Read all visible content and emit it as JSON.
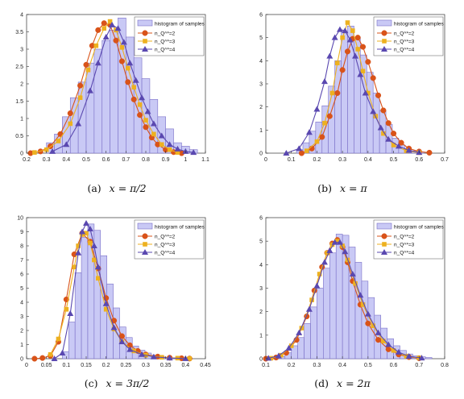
{
  "figure": {
    "legend": {
      "hist_label": "histogram of samples",
      "entries": [
        "n_Q^*=2",
        "n_Q^*=3",
        "n_Q^*=4"
      ]
    },
    "colors": {
      "bar_fill": "#c9c9f5",
      "bar_edge": "#7a6fc7",
      "s2": "#d95319",
      "s3": "#edb120",
      "s4": "#5a48b0",
      "axis": "#333333"
    }
  },
  "captions": [
    {
      "label": "(a)",
      "expr": "x = π/2"
    },
    {
      "label": "(b)",
      "expr": "x = π"
    },
    {
      "label": "(c)",
      "expr": "x = 3π/2"
    },
    {
      "label": "(d)",
      "expr": "x = 2π"
    }
  ],
  "chart_data": [
    {
      "type": "bar",
      "title": "",
      "xlim": [
        0.2,
        1.1
      ],
      "ylim": [
        0,
        4
      ],
      "xticks": [
        0.2,
        0.3,
        0.4,
        0.5,
        0.6,
        0.7,
        0.8,
        0.9,
        1,
        1.1
      ],
      "yticks": [
        0,
        0.5,
        1,
        1.5,
        2,
        2.5,
        3,
        3.5,
        4
      ],
      "hist": {
        "name": "histogram of samples",
        "start": 0.3,
        "width": 0.04,
        "values": [
          0.3,
          0.55,
          1.05,
          1.6,
          2.05,
          2.6,
          3.0,
          3.25,
          3.55,
          3.9,
          3.35,
          2.75,
          2.15,
          1.55,
          1.05,
          0.7,
          0.3,
          0.2,
          0.1
        ]
      },
      "series": [
        {
          "name": "n_Q^*=2",
          "marker": "circle",
          "x": [
            0.22,
            0.27,
            0.32,
            0.37,
            0.42,
            0.47,
            0.5,
            0.53,
            0.56,
            0.59,
            0.62,
            0.65,
            0.68,
            0.71,
            0.74,
            0.77,
            0.8,
            0.83,
            0.86,
            0.9,
            0.94,
            0.98
          ],
          "y": [
            0,
            0.05,
            0.2,
            0.55,
            1.15,
            1.95,
            2.55,
            3.1,
            3.55,
            3.75,
            3.7,
            3.25,
            2.65,
            2.05,
            1.55,
            1.1,
            0.75,
            0.45,
            0.25,
            0.1,
            0.03,
            0
          ]
        },
        {
          "name": "n_Q^*=3",
          "marker": "square",
          "x": [
            0.24,
            0.3,
            0.36,
            0.42,
            0.47,
            0.51,
            0.55,
            0.59,
            0.62,
            0.65,
            0.68,
            0.71,
            0.74,
            0.77,
            0.8,
            0.84,
            0.88,
            0.92,
            0.96
          ],
          "y": [
            0.02,
            0.1,
            0.35,
            0.85,
            1.6,
            2.4,
            3.1,
            3.6,
            3.8,
            3.55,
            3.05,
            2.45,
            1.9,
            1.4,
            0.95,
            0.55,
            0.25,
            0.1,
            0.02
          ]
        },
        {
          "name": "n_Q^*=4",
          "marker": "triangle",
          "x": [
            0.33,
            0.4,
            0.46,
            0.52,
            0.56,
            0.6,
            0.63,
            0.66,
            0.69,
            0.72,
            0.75,
            0.78,
            0.81,
            0.84,
            0.88,
            0.92,
            0.96,
            1.0,
            1.04
          ],
          "y": [
            0.05,
            0.25,
            0.85,
            1.8,
            2.6,
            3.35,
            3.7,
            3.6,
            3.2,
            2.6,
            2.1,
            1.6,
            1.2,
            0.85,
            0.5,
            0.25,
            0.12,
            0.05,
            0.02
          ]
        }
      ]
    },
    {
      "type": "bar",
      "title": "",
      "xlim": [
        0,
        0.7
      ],
      "ylim": [
        0,
        6
      ],
      "xticks": [
        0,
        0.1,
        0.2,
        0.3,
        0.4,
        0.5,
        0.6,
        0.7
      ],
      "yticks": [
        0,
        1,
        2,
        3,
        4,
        5,
        6
      ],
      "hist": {
        "name": "histogram of samples",
        "start": 0.12,
        "width": 0.025,
        "values": [
          0.15,
          0.45,
          0.95,
          1.35,
          2.05,
          2.9,
          4.0,
          5.25,
          5.5,
          5.0,
          4.25,
          3.5,
          2.6,
          1.85,
          1.25,
          0.65,
          0.35,
          0.2,
          0.1,
          0.05
        ]
      },
      "series": [
        {
          "name": "n_Q^*=2",
          "marker": "circle",
          "x": [
            0.14,
            0.18,
            0.22,
            0.25,
            0.28,
            0.3,
            0.32,
            0.34,
            0.36,
            0.38,
            0.4,
            0.42,
            0.44,
            0.46,
            0.48,
            0.5,
            0.53,
            0.56,
            0.6,
            0.64
          ],
          "y": [
            0,
            0.2,
            0.7,
            1.6,
            2.6,
            3.6,
            4.4,
            4.95,
            5.0,
            4.6,
            3.95,
            3.25,
            2.5,
            1.85,
            1.3,
            0.85,
            0.45,
            0.2,
            0.07,
            0.02
          ]
        },
        {
          "name": "n_Q^*=3",
          "marker": "square",
          "x": [
            0.16,
            0.2,
            0.23,
            0.26,
            0.28,
            0.3,
            0.32,
            0.34,
            0.36,
            0.38,
            0.4,
            0.43,
            0.46,
            0.5,
            0.55,
            0.6
          ],
          "y": [
            0.1,
            0.5,
            1.3,
            2.6,
            3.9,
            5.0,
            5.65,
            5.3,
            4.5,
            3.55,
            2.6,
            1.6,
            0.85,
            0.35,
            0.1,
            0.02
          ]
        },
        {
          "name": "n_Q^*=4",
          "marker": "triangle",
          "x": [
            0.08,
            0.13,
            0.17,
            0.2,
            0.23,
            0.25,
            0.27,
            0.29,
            0.31,
            0.33,
            0.35,
            0.37,
            0.39,
            0.42,
            0.45,
            0.48,
            0.52,
            0.56,
            0.6
          ],
          "y": [
            0,
            0.2,
            0.9,
            1.9,
            3.1,
            4.2,
            5.0,
            5.35,
            5.3,
            4.9,
            4.2,
            3.4,
            2.6,
            1.8,
            1.1,
            0.6,
            0.3,
            0.12,
            0.03
          ]
        }
      ]
    },
    {
      "type": "bar",
      "title": "",
      "xlim": [
        0,
        0.45
      ],
      "ylim": [
        0,
        10
      ],
      "xticks": [
        0,
        0.05,
        0.1,
        0.15,
        0.2,
        0.25,
        0.3,
        0.35,
        0.4,
        0.45
      ],
      "yticks": [
        0,
        1,
        2,
        3,
        4,
        5,
        6,
        7,
        8,
        9,
        10
      ],
      "hist": {
        "name": "histogram of samples",
        "start": 0.09,
        "width": 0.016,
        "values": [
          0.5,
          2.6,
          6.1,
          8.6,
          9.55,
          9.1,
          7.3,
          5.3,
          3.6,
          2.25,
          1.5,
          0.9,
          0.6,
          0.4,
          0.25,
          0.18,
          0.1,
          0.06,
          0.04
        ]
      },
      "series": [
        {
          "name": "n_Q^*=2",
          "marker": "circle",
          "x": [
            0.02,
            0.04,
            0.06,
            0.08,
            0.1,
            0.12,
            0.14,
            0.16,
            0.18,
            0.2,
            0.22,
            0.24,
            0.26,
            0.28,
            0.3,
            0.33,
            0.36,
            0.39,
            0.41
          ],
          "y": [
            0,
            0.05,
            0.2,
            1.2,
            4.2,
            7.4,
            8.9,
            8.3,
            6.4,
            4.3,
            2.7,
            1.6,
            0.95,
            0.55,
            0.3,
            0.15,
            0.07,
            0.03,
            0.01
          ]
        },
        {
          "name": "n_Q^*=3",
          "marker": "square",
          "x": [
            0.06,
            0.08,
            0.1,
            0.12,
            0.13,
            0.14,
            0.15,
            0.16,
            0.17,
            0.18,
            0.2,
            0.22,
            0.24,
            0.27,
            0.3,
            0.34,
            0.38,
            0.41
          ],
          "y": [
            0.3,
            1.4,
            3.5,
            6.5,
            8.0,
            8.8,
            8.9,
            8.2,
            7.0,
            5.7,
            3.5,
            2.1,
            1.2,
            0.55,
            0.25,
            0.1,
            0.04,
            0.01
          ]
        },
        {
          "name": "n_Q^*=4",
          "marker": "triangle",
          "x": [
            0.07,
            0.09,
            0.11,
            0.13,
            0.14,
            0.15,
            0.16,
            0.17,
            0.18,
            0.2,
            0.22,
            0.24,
            0.26,
            0.29,
            0.32,
            0.36,
            0.4
          ],
          "y": [
            0,
            0.4,
            3.2,
            7.5,
            9.0,
            9.6,
            9.2,
            8.0,
            6.5,
            3.9,
            2.2,
            1.2,
            0.65,
            0.3,
            0.13,
            0.05,
            0.01
          ]
        }
      ]
    },
    {
      "type": "bar",
      "title": "",
      "xlim": [
        0.1,
        0.8
      ],
      "ylim": [
        0,
        6
      ],
      "xticks": [
        0.1,
        0.2,
        0.3,
        0.4,
        0.5,
        0.6,
        0.7,
        0.8
      ],
      "yticks": [
        0,
        1,
        2,
        3,
        4,
        5,
        6
      ],
      "hist": {
        "name": "histogram of samples",
        "start": 0.15,
        "width": 0.025,
        "values": [
          0.1,
          0.25,
          0.55,
          0.9,
          1.5,
          2.2,
          3.0,
          3.85,
          4.5,
          5.3,
          5.25,
          4.75,
          4.1,
          3.3,
          2.6,
          1.85,
          1.3,
          0.85,
          0.55,
          0.35,
          0.2,
          0.12,
          0.08,
          0.05
        ]
      },
      "series": [
        {
          "name": "n_Q^*=2",
          "marker": "circle",
          "x": [
            0.1,
            0.14,
            0.18,
            0.22,
            0.26,
            0.29,
            0.32,
            0.34,
            0.36,
            0.38,
            0.4,
            0.42,
            0.44,
            0.47,
            0.5,
            0.54,
            0.58,
            0.62,
            0.66,
            0.7
          ],
          "y": [
            0,
            0.05,
            0.25,
            0.8,
            1.8,
            2.9,
            3.9,
            4.5,
            4.9,
            5.05,
            4.75,
            4.1,
            3.3,
            2.3,
            1.5,
            0.8,
            0.4,
            0.18,
            0.07,
            0.02
          ]
        },
        {
          "name": "n_Q^*=3",
          "marker": "square",
          "x": [
            0.12,
            0.16,
            0.2,
            0.24,
            0.28,
            0.31,
            0.34,
            0.36,
            0.38,
            0.4,
            0.42,
            0.45,
            0.48,
            0.52,
            0.56,
            0.6,
            0.65,
            0.7
          ],
          "y": [
            0.02,
            0.15,
            0.55,
            1.3,
            2.5,
            3.6,
            4.5,
            4.85,
            5.0,
            4.8,
            4.2,
            3.2,
            2.3,
            1.4,
            0.75,
            0.35,
            0.1,
            0.03
          ]
        },
        {
          "name": "n_Q^*=4",
          "marker": "triangle",
          "x": [
            0.11,
            0.15,
            0.19,
            0.23,
            0.27,
            0.3,
            0.33,
            0.35,
            0.37,
            0.39,
            0.41,
            0.44,
            0.47,
            0.5,
            0.54,
            0.58,
            0.62,
            0.66,
            0.71
          ],
          "y": [
            0.02,
            0.12,
            0.45,
            1.1,
            2.1,
            3.1,
            4.1,
            4.6,
            4.95,
            4.95,
            4.55,
            3.6,
            2.7,
            1.9,
            1.1,
            0.6,
            0.28,
            0.1,
            0.03
          ]
        }
      ]
    }
  ]
}
